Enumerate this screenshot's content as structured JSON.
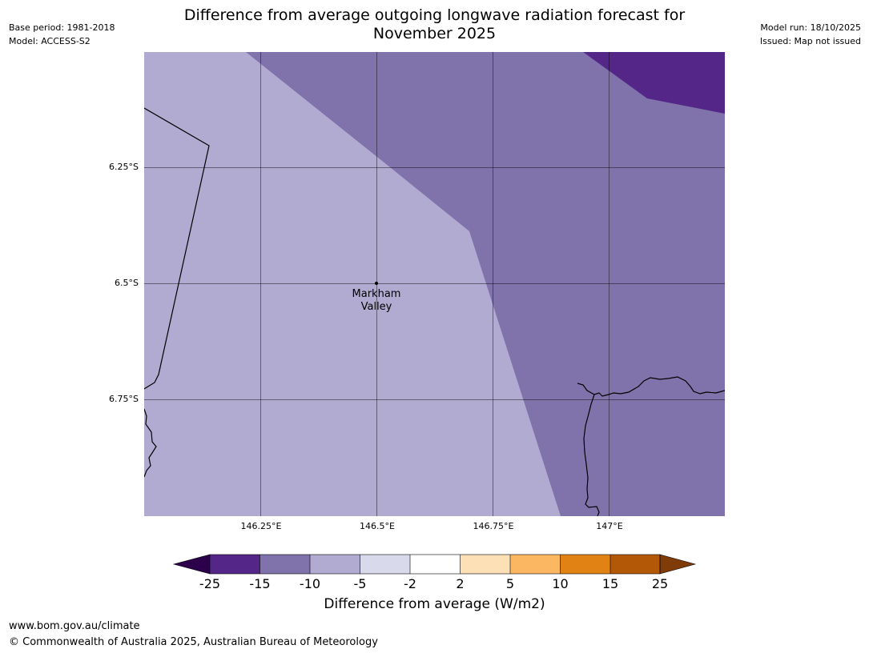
{
  "header": {
    "base_period": "Base period: 1981-2018",
    "model": "Model: ACCESS-S2",
    "title_line1": "Difference from average outgoing longwave radiation forecast for",
    "title_line2": "November 2025",
    "model_run": "Model run: 18/10/2025",
    "issued": "Issued: Map not issued"
  },
  "map": {
    "lat_labels": [
      "6.25°S",
      "6.5°S",
      "6.75°S"
    ],
    "lon_labels": [
      "146.25°E",
      "146.5°E",
      "146.75°E",
      "147°E"
    ],
    "place": {
      "name_line1": "Markham",
      "name_line2": "Valley",
      "lat": -6.5,
      "lon": 146.5
    },
    "zones": [
      {
        "range": "-10 to -5",
        "color": "#b1abd1"
      },
      {
        "range": "-15 to -10",
        "color": "#8073ab"
      },
      {
        "range": "-25 to -15",
        "color": "#542688"
      }
    ]
  },
  "colorbar": {
    "label": "Difference from average (W/m2)",
    "ticks": [
      "-25",
      "-15",
      "-10",
      "-5",
      "-2",
      "2",
      "5",
      "10",
      "15",
      "25"
    ],
    "colors": [
      "#542688",
      "#8073ab",
      "#b1abd1",
      "#d8d9eb",
      "#ffffff",
      "#fee0b6",
      "#fbb761",
      "#e08214",
      "#b35806"
    ],
    "under_color": "#2d004b",
    "over_color": "#7f3b08"
  },
  "footer": {
    "url": "www.bom.gov.au/climate",
    "copyright": "© Commonwealth of Australia 2025, Australian Bureau of Meteorology"
  }
}
